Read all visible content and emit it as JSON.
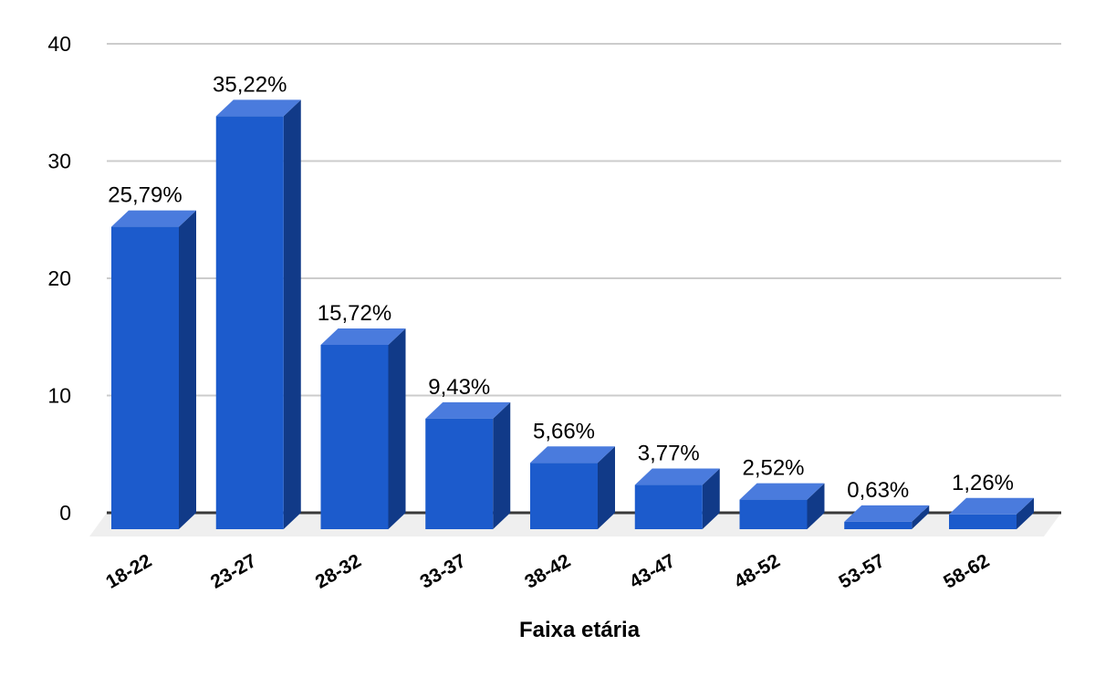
{
  "chart_data": {
    "type": "bar",
    "subtype": "3d-column",
    "title": "",
    "xlabel": "Faixa etária",
    "ylabel": "",
    "categories": [
      "18-22",
      "23-27",
      "28-32",
      "33-37",
      "38-42",
      "43-47",
      "48-52",
      "53-57",
      "58-62"
    ],
    "values": [
      25.79,
      35.22,
      15.72,
      9.43,
      5.66,
      3.77,
      2.52,
      0.63,
      1.26
    ],
    "value_labels": [
      "25,79%",
      "35,22%",
      "15,72%",
      "9,43%",
      "5,66%",
      "3,77%",
      "2,52%",
      "0,63%",
      "1,26%"
    ],
    "yticks": [
      0,
      10,
      20,
      30,
      40
    ],
    "ytick_labels": [
      "0",
      "10",
      "20",
      "30",
      "40"
    ],
    "ylim": [
      0,
      40
    ],
    "grid": true,
    "legend": "none",
    "colors": {
      "bar_front": "#1c5bcc",
      "bar_top": "#4a7bdd",
      "bar_side": "#113a88",
      "gridline": "#cccccc",
      "zero_line": "#383838",
      "floor": "#efefef",
      "label_text": "#000000",
      "background": "#ffffff"
    }
  }
}
